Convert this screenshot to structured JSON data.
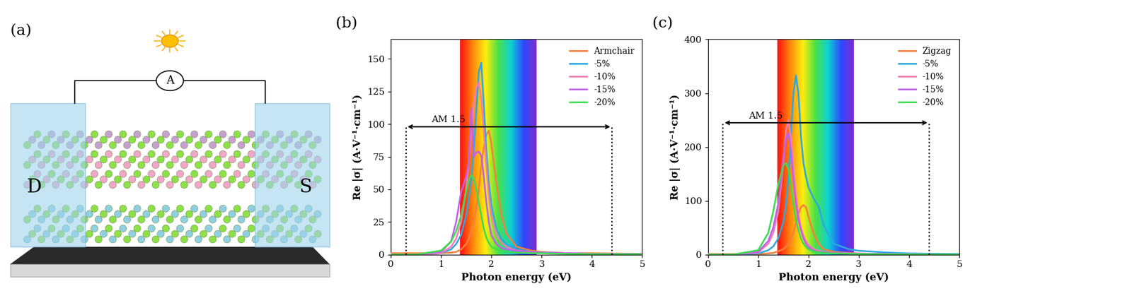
{
  "diagram": {
    "label": "(a)",
    "ammeter": "A",
    "drain": "D",
    "source": "S"
  },
  "chart_data": [
    {
      "type": "line",
      "title": "(b)",
      "x_label": "Photon energy (eV)",
      "y_label": "Re |σ| (A·V⁻¹·cm⁻¹)",
      "x": [
        0,
        0.5,
        1.0,
        1.2,
        1.3,
        1.4,
        1.5,
        1.55,
        1.6,
        1.65,
        1.7,
        1.75,
        1.8,
        1.85,
        1.9,
        1.95,
        2.0,
        2.1,
        2.2,
        2.3,
        2.5,
        2.8,
        3.0,
        3.5,
        4.0,
        5.0
      ],
      "series": [
        {
          "name": "Armchair",
          "color": "#f5813c",
          "values": [
            1,
            1,
            1,
            1.5,
            2,
            4,
            8,
            12,
            18,
            25,
            35,
            50,
            68,
            82,
            92,
            95,
            85,
            55,
            30,
            16,
            6,
            3,
            2,
            1,
            1,
            0.5
          ]
        },
        {
          "name": "-5%",
          "color": "#2ea7e0",
          "values": [
            0,
            0,
            1,
            4,
            8,
            15,
            30,
            42,
            58,
            80,
            110,
            140,
            147,
            115,
            80,
            55,
            38,
            20,
            12,
            8,
            4,
            2,
            1.5,
            1,
            0.5,
            0.3
          ]
        },
        {
          "name": "-10%",
          "color": "#f07fb0",
          "values": [
            0,
            0,
            1,
            6,
            12,
            25,
            50,
            70,
            95,
            115,
            128,
            132,
            120,
            95,
            68,
            45,
            30,
            15,
            9,
            6,
            3,
            2,
            1.5,
            1,
            0.5,
            0.3
          ]
        },
        {
          "name": "-15%",
          "color": "#c060e8",
          "values": [
            0,
            0,
            2,
            10,
            25,
            48,
            60,
            70,
            112,
            75,
            78,
            79,
            76,
            60,
            40,
            25,
            15,
            8,
            5,
            4,
            3,
            2,
            1.5,
            1,
            0.5,
            0.3
          ]
        },
        {
          "name": "-20%",
          "color": "#3cdc50",
          "values": [
            0,
            0,
            3,
            10,
            18,
            30,
            48,
            57,
            61,
            58,
            50,
            40,
            30,
            20,
            13,
            9,
            6,
            4,
            3,
            2,
            1.5,
            1,
            1,
            0.5,
            0.3,
            0.2
          ]
        }
      ],
      "xlim": [
        0,
        5
      ],
      "xticks": [
        0,
        1,
        2,
        3,
        4,
        5
      ],
      "ylim": [
        0,
        165
      ],
      "yticks": [
        0,
        25,
        50,
        75,
        100,
        125,
        150
      ],
      "legend": "upper right",
      "visible_band": [
        1.38,
        2.9
      ],
      "am15": {
        "text": "AM 1.5",
        "x": [
          0.3,
          4.4
        ],
        "y": 98
      }
    },
    {
      "type": "line",
      "title": "(c)",
      "x_label": "Photon energy (eV)",
      "y_label": "Re |σ| (A·V⁻¹·cm⁻¹)",
      "x": [
        0,
        0.5,
        1.0,
        1.2,
        1.3,
        1.4,
        1.5,
        1.55,
        1.6,
        1.65,
        1.7,
        1.75,
        1.8,
        1.85,
        1.9,
        1.95,
        2.0,
        2.1,
        2.2,
        2.3,
        2.5,
        2.8,
        3.0,
        3.5,
        4.0,
        5.0
      ],
      "series": [
        {
          "name": "Zigzag",
          "color": "#f5813c",
          "values": [
            1,
            1,
            1,
            2,
            3,
            6,
            10,
            14,
            20,
            28,
            40,
            58,
            75,
            88,
            92,
            88,
            70,
            40,
            20,
            10,
            5,
            3,
            2,
            1,
            1,
            0.5
          ]
        },
        {
          "name": "-5%",
          "color": "#2ea7e0",
          "values": [
            0,
            0,
            2,
            8,
            15,
            30,
            60,
            90,
            140,
            220,
            300,
            333,
            300,
            220,
            170,
            145,
            125,
            105,
            90,
            55,
            20,
            10,
            7,
            4,
            2,
            1
          ]
        },
        {
          "name": "-10%",
          "color": "#f07fb0",
          "values": [
            0,
            0,
            4,
            20,
            40,
            80,
            170,
            230,
            250,
            220,
            160,
            110,
            75,
            50,
            35,
            25,
            18,
            10,
            7,
            5,
            3,
            2,
            1.5,
            1,
            0.5,
            0.3
          ]
        },
        {
          "name": "-15%",
          "color": "#c060e8",
          "values": [
            0,
            0,
            5,
            25,
            50,
            95,
            180,
            215,
            225,
            195,
            140,
            95,
            65,
            45,
            30,
            20,
            14,
            8,
            5,
            4,
            3,
            2,
            1.5,
            1,
            0.5,
            0.3
          ]
        },
        {
          "name": "-20%",
          "color": "#3cdc50",
          "values": [
            0,
            0,
            8,
            40,
            80,
            130,
            165,
            170,
            160,
            130,
            95,
            65,
            45,
            30,
            20,
            14,
            10,
            6,
            4,
            3,
            2,
            1.5,
            1,
            0.5,
            0.3,
            0.2
          ]
        }
      ],
      "xlim": [
        0,
        5
      ],
      "xticks": [
        0,
        1,
        2,
        3,
        4,
        5
      ],
      "ylim": [
        0,
        400
      ],
      "yticks": [
        0,
        100,
        200,
        300,
        400
      ],
      "legend": "upper right",
      "visible_band": [
        1.38,
        2.9
      ],
      "am15": {
        "text": "AM 1.5",
        "x": [
          0.3,
          4.4
        ],
        "y": 245
      }
    }
  ]
}
